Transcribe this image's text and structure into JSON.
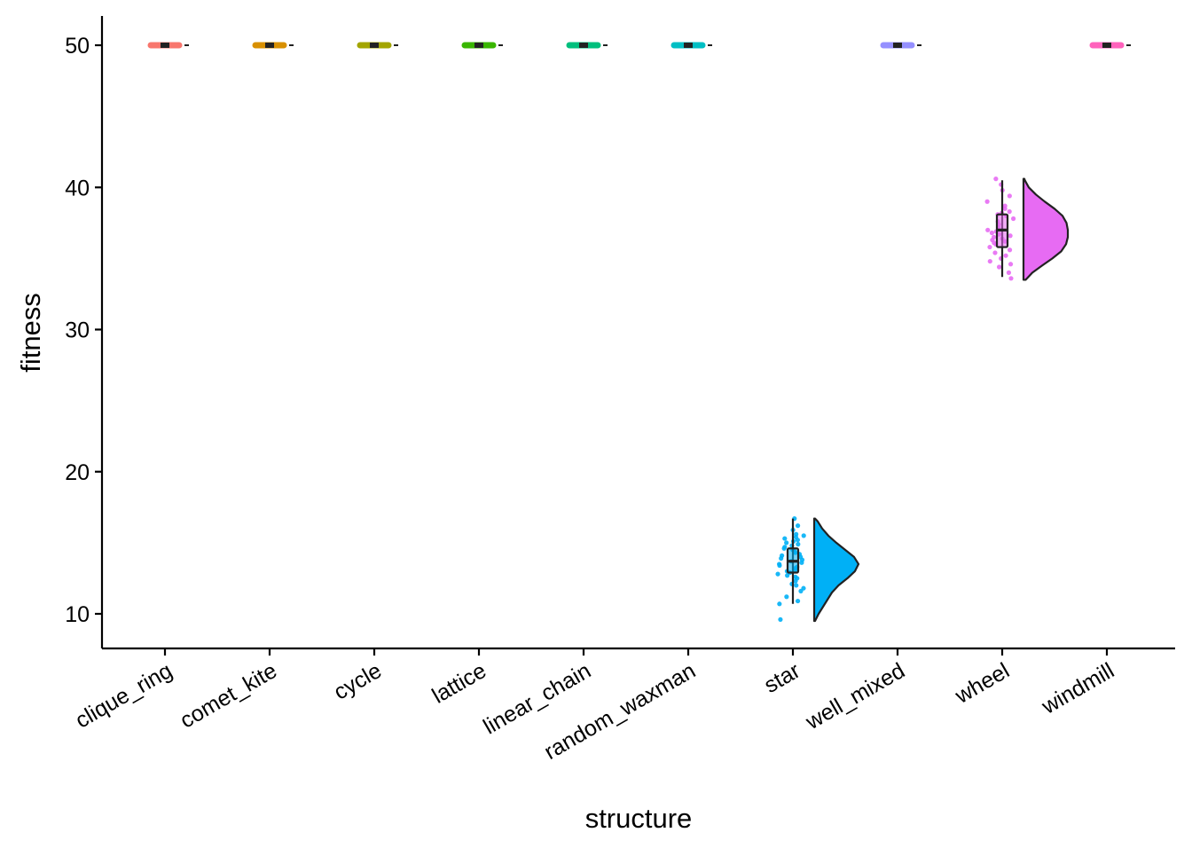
{
  "chart_data": {
    "type": "raincloud",
    "xlabel": "structure",
    "ylabel": "fitness",
    "ylim": [
      7.5,
      52
    ],
    "yticks": [
      10,
      20,
      30,
      40,
      50
    ],
    "grid": false,
    "legend": "none",
    "categories": [
      "clique_ring",
      "comet_kite",
      "cycle",
      "lattice",
      "linear_chain",
      "random_waxman",
      "star",
      "well_mixed",
      "wheel",
      "windmill"
    ],
    "colors": [
      "#F8766D",
      "#D89000",
      "#A3A500",
      "#39B600",
      "#00BF7D",
      "#00BFC4",
      "#00B0F6",
      "#9590FF",
      "#E76BF3",
      "#FF62BC"
    ],
    "series": [
      {
        "category": "clique_ring",
        "min": 50,
        "q1": 50,
        "median": 50,
        "q3": 50,
        "max": 50,
        "points": [
          50,
          50,
          50,
          50,
          50,
          50,
          50,
          50,
          50,
          50
        ]
      },
      {
        "category": "comet_kite",
        "min": 50,
        "q1": 50,
        "median": 50,
        "q3": 50,
        "max": 50,
        "points": [
          50,
          50,
          50,
          50,
          50,
          50,
          50,
          50,
          50,
          50
        ]
      },
      {
        "category": "cycle",
        "min": 50,
        "q1": 50,
        "median": 50,
        "q3": 50,
        "max": 50,
        "points": [
          50,
          50,
          50,
          50,
          50,
          50,
          50,
          50,
          50,
          50
        ]
      },
      {
        "category": "lattice",
        "min": 50,
        "q1": 50,
        "median": 50,
        "q3": 50,
        "max": 50,
        "points": [
          50,
          50,
          50,
          50,
          50,
          50,
          50,
          50,
          50,
          50
        ]
      },
      {
        "category": "linear_chain",
        "min": 50,
        "q1": 50,
        "median": 50,
        "q3": 50,
        "max": 50,
        "points": [
          50,
          50,
          50,
          50,
          50,
          50,
          50,
          50,
          50,
          50
        ]
      },
      {
        "category": "random_waxman",
        "min": 50,
        "q1": 50,
        "median": 50,
        "q3": 50,
        "max": 50,
        "points": [
          50,
          50,
          50,
          50,
          50,
          50,
          50,
          50,
          50,
          50
        ]
      },
      {
        "category": "star",
        "min": 10.7,
        "q1": 12.9,
        "median": 13.7,
        "q3": 14.6,
        "max": 16.7,
        "points": [
          16.7,
          16.2,
          15.9,
          15.6,
          15.5,
          15.4,
          15.3,
          15.2,
          15.1,
          15.0,
          14.9,
          14.8,
          14.7,
          14.6,
          14.5,
          14.4,
          14.3,
          14.2,
          14.1,
          14.0,
          13.9,
          13.8,
          13.7,
          13.6,
          13.5,
          13.4,
          13.3,
          13.2,
          13.1,
          13.0,
          12.9,
          12.8,
          12.7,
          12.6,
          12.5,
          12.3,
          12.1,
          12.0,
          11.8,
          11.6,
          11.2,
          10.9,
          10.7,
          9.6
        ],
        "density": [
          [
            9.5,
            0.02
          ],
          [
            10.0,
            0.1
          ],
          [
            10.5,
            0.2
          ],
          [
            11.0,
            0.3
          ],
          [
            11.5,
            0.4
          ],
          [
            12.0,
            0.55
          ],
          [
            12.5,
            0.75
          ],
          [
            13.0,
            0.92
          ],
          [
            13.5,
            1.0
          ],
          [
            14.0,
            0.9
          ],
          [
            14.5,
            0.7
          ],
          [
            15.0,
            0.5
          ],
          [
            15.5,
            0.32
          ],
          [
            16.0,
            0.18
          ],
          [
            16.5,
            0.08
          ],
          [
            16.7,
            0.02
          ]
        ]
      },
      {
        "category": "well_mixed",
        "min": 50,
        "q1": 50,
        "median": 50,
        "q3": 50,
        "max": 50,
        "points": [
          50,
          50,
          50,
          50,
          50,
          50,
          50,
          50,
          50,
          50
        ]
      },
      {
        "category": "wheel",
        "min": 33.7,
        "q1": 35.8,
        "median": 37.0,
        "q3": 38.1,
        "max": 40.5,
        "points": [
          40.6,
          40.2,
          39.8,
          39.4,
          39.0,
          38.7,
          38.5,
          38.3,
          38.2,
          38.1,
          38.0,
          37.8,
          37.6,
          37.4,
          37.2,
          37.0,
          36.9,
          36.8,
          36.7,
          36.6,
          36.5,
          36.4,
          36.3,
          36.2,
          36.1,
          36.0,
          35.8,
          35.6,
          35.4,
          35.2,
          35.0,
          34.8,
          34.6,
          34.4,
          34.0,
          33.6
        ],
        "density": [
          [
            33.5,
            0.05
          ],
          [
            34.0,
            0.2
          ],
          [
            34.5,
            0.42
          ],
          [
            35.0,
            0.65
          ],
          [
            35.5,
            0.85
          ],
          [
            36.0,
            0.96
          ],
          [
            36.5,
            1.0
          ],
          [
            37.0,
            1.0
          ],
          [
            37.5,
            0.97
          ],
          [
            38.0,
            0.88
          ],
          [
            38.5,
            0.7
          ],
          [
            39.0,
            0.48
          ],
          [
            39.5,
            0.28
          ],
          [
            40.0,
            0.12
          ],
          [
            40.5,
            0.03
          ],
          [
            40.6,
            0.02
          ]
        ]
      },
      {
        "category": "windmill",
        "min": 50,
        "q1": 50,
        "median": 50,
        "q3": 50,
        "max": 50,
        "points": [
          50,
          50,
          50,
          50,
          50,
          50,
          50,
          50,
          50,
          50
        ]
      }
    ]
  }
}
